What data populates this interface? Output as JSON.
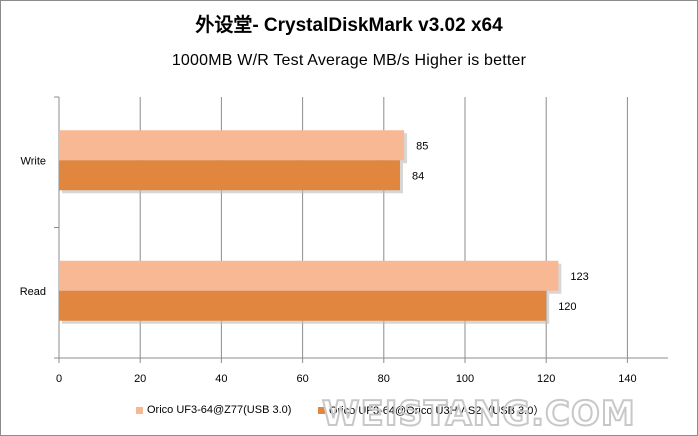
{
  "chart_data": {
    "type": "bar",
    "orientation": "horizontal",
    "title": "外设堂- CrystalDiskMark v3.02 x64",
    "subtitle": "1000MB W/R Test   Average MB/s   Higher is better",
    "categories": [
      "Write",
      "Read"
    ],
    "series": [
      {
        "name": "Orico UF3-64@Z77(USB 3.0)",
        "color": "#f9b894",
        "values": [
          85,
          123
        ]
      },
      {
        "name": "Orico UF3-64@Orico U3HV-S2（USB 3.0）",
        "color": "#e0863f",
        "values": [
          84,
          120
        ]
      }
    ],
    "data_labels": [
      [
        "85",
        "123"
      ],
      [
        "84",
        "120"
      ]
    ],
    "xlim": [
      0,
      150
    ],
    "x_ticks": [
      0,
      20,
      40,
      60,
      80,
      100,
      120,
      140
    ],
    "grid": "vertical",
    "legend_position": "bottom"
  },
  "watermark": {
    "text": "WEISTANG.COM",
    "color": "#c8c8c8"
  }
}
